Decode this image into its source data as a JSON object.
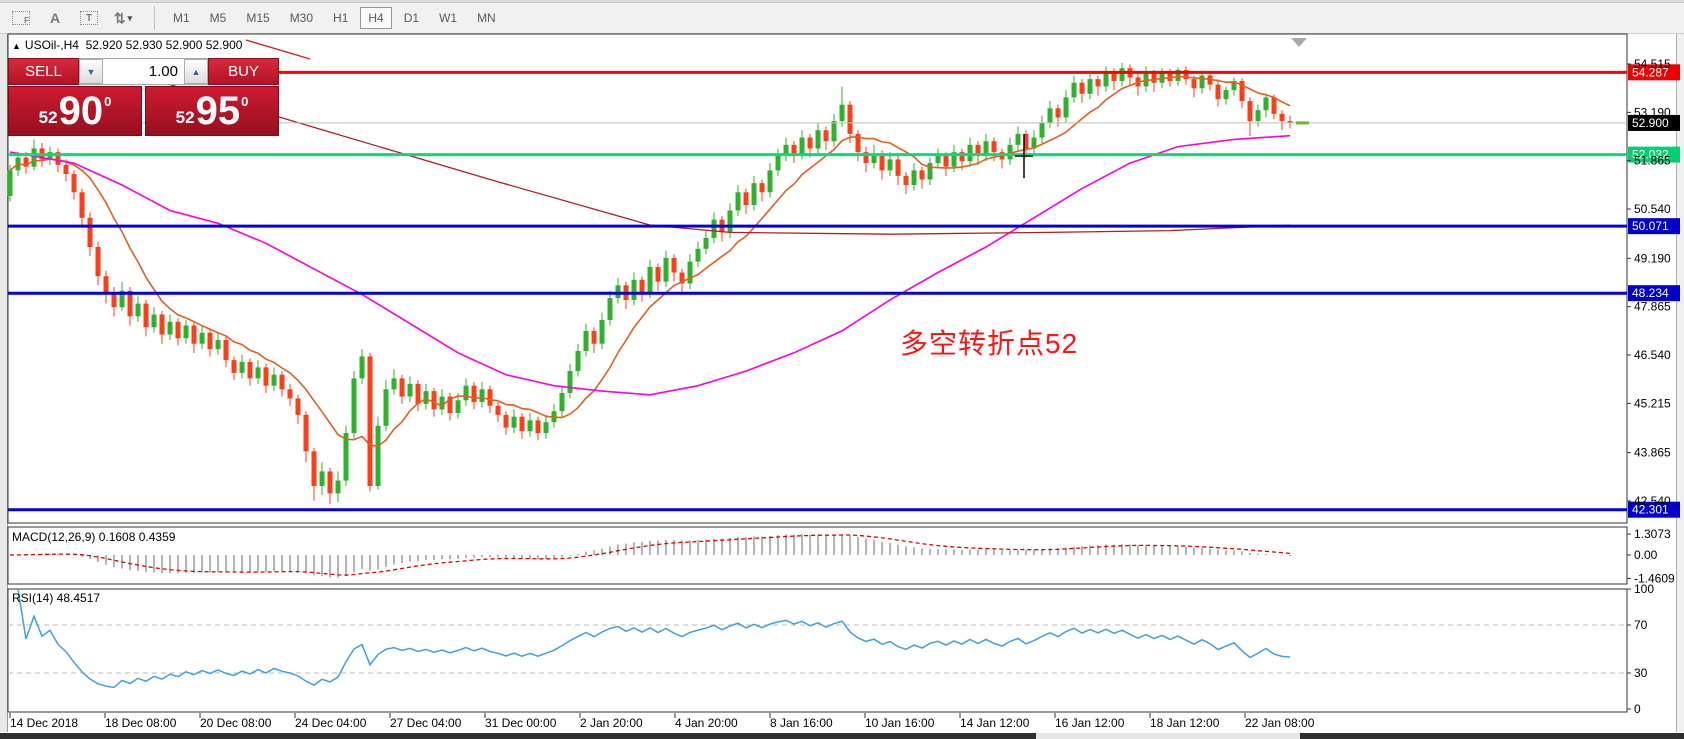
{
  "toolbar": {
    "tool_icons": [
      {
        "name": "template-f-icon",
        "glyph": "F"
      },
      {
        "name": "text-label-icon",
        "glyph": "A"
      },
      {
        "name": "text-tool-icon",
        "glyph": "T"
      },
      {
        "name": "arrows-tool-icon",
        "glyph": "⇅"
      }
    ],
    "dropdown_caret": "▾",
    "timeframes": [
      "M1",
      "M5",
      "M15",
      "M30",
      "H1",
      "H4",
      "D1",
      "W1",
      "MN"
    ],
    "active_timeframe": "H4"
  },
  "chart": {
    "title_symbol": "USOil-,H4",
    "title_quotes": "52.920 52.930 52.900 52.900",
    "title_arrow": "▲"
  },
  "trade_panel": {
    "sell_label": "SELL",
    "buy_label": "BUY",
    "volume": "1.00",
    "volume_up_glyph": "▲",
    "volume_down_glyph": "▼",
    "sell_price_small": "52",
    "sell_price_big": "90",
    "sell_price_sup": "0",
    "buy_price_small": "52",
    "buy_price_big": "95",
    "buy_price_sup": "0"
  },
  "chart_data": {
    "type": "candlestick",
    "symbol": "USOil-",
    "timeframe": "H4",
    "up_color": "#2bb32b",
    "down_color": "#ff3d17",
    "price_axis_ticks": [
      54.515,
      53.19,
      51.865,
      50.54,
      49.19,
      47.865,
      46.54,
      45.215,
      43.865,
      42.54
    ],
    "levels": [
      {
        "price": 54.287,
        "label": "54.287",
        "color": "#ff0000",
        "width": 3,
        "badge": "#ee0000"
      },
      {
        "price": 52.9,
        "label": "52.900",
        "color": "#bdbdbd",
        "width": 1,
        "badge": "#000000"
      },
      {
        "price": 52.032,
        "label": "52.032",
        "color": "#00df7a",
        "width": 3,
        "badge": "#00d274"
      },
      {
        "price": 50.071,
        "label": "50.071",
        "color": "#0000d9",
        "width": 3,
        "badge": "#0000cc"
      },
      {
        "price": 48.234,
        "label": "48.234",
        "color": "#0000d9",
        "width": 3,
        "badge": "#0000cc"
      },
      {
        "price": 42.301,
        "label": "42.301",
        "color": "#0000d9",
        "width": 3,
        "badge": "#0000cc"
      }
    ],
    "close_marker": {
      "price": 52.9,
      "color": "#6ab42f"
    },
    "candles": [
      [
        50.9,
        51.75,
        50.75,
        51.6
      ],
      [
        51.6,
        52.1,
        51.45,
        51.95
      ],
      [
        51.95,
        52.1,
        51.5,
        51.7
      ],
      [
        51.7,
        52.45,
        51.6,
        52.2
      ],
      [
        52.2,
        52.35,
        51.7,
        51.9
      ],
      [
        51.9,
        52.25,
        51.75,
        52.1
      ],
      [
        52.1,
        52.2,
        51.55,
        51.75
      ],
      [
        51.75,
        51.9,
        51.3,
        51.5
      ],
      [
        51.5,
        51.6,
        50.8,
        51.0
      ],
      [
        51.0,
        51.1,
        50.05,
        50.3
      ],
      [
        50.3,
        50.45,
        49.25,
        49.5
      ],
      [
        49.5,
        49.65,
        48.45,
        48.7
      ],
      [
        48.7,
        48.85,
        47.95,
        48.2
      ],
      [
        48.2,
        48.4,
        47.6,
        47.85
      ],
      [
        47.85,
        48.55,
        47.75,
        48.3
      ],
      [
        48.3,
        48.4,
        47.35,
        47.6
      ],
      [
        47.6,
        48.15,
        47.45,
        47.95
      ],
      [
        47.95,
        48.05,
        47.05,
        47.3
      ],
      [
        47.3,
        47.85,
        47.15,
        47.65
      ],
      [
        47.65,
        47.75,
        46.85,
        47.1
      ],
      [
        47.1,
        47.65,
        46.95,
        47.45
      ],
      [
        47.45,
        47.55,
        46.8,
        47.0
      ],
      [
        47.0,
        47.5,
        46.85,
        47.35
      ],
      [
        47.35,
        47.45,
        46.6,
        46.85
      ],
      [
        46.85,
        47.35,
        46.7,
        47.15
      ],
      [
        47.15,
        47.25,
        46.5,
        46.7
      ],
      [
        46.7,
        47.15,
        46.55,
        46.95
      ],
      [
        46.95,
        47.05,
        46.2,
        46.4
      ],
      [
        46.4,
        46.5,
        45.85,
        46.05
      ],
      [
        46.05,
        46.55,
        45.9,
        46.35
      ],
      [
        46.35,
        46.45,
        45.7,
        45.9
      ],
      [
        45.9,
        46.4,
        45.75,
        46.2
      ],
      [
        46.2,
        46.3,
        45.5,
        45.7
      ],
      [
        45.7,
        46.2,
        45.55,
        46.0
      ],
      [
        46.0,
        46.1,
        45.4,
        45.6
      ],
      [
        45.6,
        45.75,
        45.15,
        45.35
      ],
      [
        45.35,
        45.45,
        44.65,
        44.9
      ],
      [
        44.9,
        45.0,
        43.6,
        43.9
      ],
      [
        43.9,
        44.0,
        42.55,
        42.95
      ],
      [
        42.95,
        43.6,
        42.7,
        43.35
      ],
      [
        43.35,
        43.45,
        42.45,
        42.75
      ],
      [
        42.75,
        43.35,
        42.5,
        43.1
      ],
      [
        43.1,
        44.6,
        42.95,
        44.4
      ],
      [
        44.4,
        46.1,
        44.25,
        45.9
      ],
      [
        45.9,
        46.7,
        45.75,
        46.5
      ],
      [
        46.5,
        46.6,
        42.8,
        42.95
      ],
      [
        42.95,
        44.85,
        42.85,
        44.6
      ],
      [
        44.6,
        45.85,
        44.45,
        45.6
      ],
      [
        45.6,
        46.15,
        45.45,
        45.9
      ],
      [
        45.9,
        46.0,
        45.2,
        45.4
      ],
      [
        45.4,
        45.95,
        45.25,
        45.75
      ],
      [
        45.75,
        45.85,
        45.0,
        45.2
      ],
      [
        45.2,
        45.75,
        45.05,
        45.55
      ],
      [
        45.55,
        45.65,
        44.85,
        45.05
      ],
      [
        45.05,
        45.6,
        44.9,
        45.4
      ],
      [
        45.4,
        45.5,
        44.75,
        44.95
      ],
      [
        44.95,
        45.5,
        44.8,
        45.3
      ],
      [
        45.3,
        45.9,
        45.15,
        45.7
      ],
      [
        45.7,
        45.8,
        45.05,
        45.25
      ],
      [
        45.25,
        45.8,
        45.1,
        45.6
      ],
      [
        45.6,
        45.7,
        44.95,
        45.15
      ],
      [
        45.15,
        45.25,
        44.7,
        44.9
      ],
      [
        44.9,
        45.0,
        44.35,
        44.55
      ],
      [
        44.55,
        45.05,
        44.4,
        44.85
      ],
      [
        44.85,
        44.95,
        44.25,
        44.45
      ],
      [
        44.45,
        44.95,
        44.3,
        44.75
      ],
      [
        44.75,
        44.85,
        44.2,
        44.4
      ],
      [
        44.4,
        44.9,
        44.25,
        44.7
      ],
      [
        44.7,
        45.2,
        44.55,
        45.0
      ],
      [
        45.0,
        45.7,
        44.85,
        45.5
      ],
      [
        45.5,
        46.3,
        45.35,
        46.1
      ],
      [
        46.1,
        46.85,
        45.95,
        46.65
      ],
      [
        46.65,
        47.4,
        46.5,
        47.2
      ],
      [
        47.2,
        47.3,
        46.6,
        46.85
      ],
      [
        46.85,
        47.7,
        46.7,
        47.5
      ],
      [
        47.5,
        48.3,
        47.35,
        48.1
      ],
      [
        48.1,
        48.65,
        47.95,
        48.45
      ],
      [
        48.45,
        48.55,
        47.8,
        48.05
      ],
      [
        48.05,
        48.8,
        47.9,
        48.6
      ],
      [
        48.6,
        48.7,
        48.0,
        48.25
      ],
      [
        48.25,
        49.15,
        48.1,
        48.95
      ],
      [
        48.95,
        49.05,
        48.3,
        48.55
      ],
      [
        48.55,
        49.4,
        48.4,
        49.2
      ],
      [
        49.2,
        49.3,
        48.55,
        48.8
      ],
      [
        48.8,
        48.9,
        48.25,
        48.5
      ],
      [
        48.5,
        49.3,
        48.35,
        49.1
      ],
      [
        49.1,
        49.65,
        48.95,
        49.45
      ],
      [
        49.45,
        49.95,
        49.3,
        49.75
      ],
      [
        49.75,
        50.45,
        49.6,
        50.25
      ],
      [
        50.25,
        50.35,
        49.65,
        49.9
      ],
      [
        49.9,
        50.7,
        49.75,
        50.5
      ],
      [
        50.5,
        51.2,
        50.35,
        51.0
      ],
      [
        51.0,
        51.1,
        50.4,
        50.65
      ],
      [
        50.65,
        51.45,
        50.5,
        51.25
      ],
      [
        51.25,
        51.35,
        50.75,
        51.0
      ],
      [
        51.0,
        51.8,
        50.85,
        51.6
      ],
      [
        51.6,
        52.2,
        51.45,
        52.0
      ],
      [
        52.0,
        52.5,
        51.85,
        52.3
      ],
      [
        52.3,
        52.4,
        51.8,
        52.05
      ],
      [
        52.05,
        52.7,
        51.9,
        52.5
      ],
      [
        52.5,
        52.6,
        51.95,
        52.2
      ],
      [
        52.2,
        52.9,
        52.05,
        52.7
      ],
      [
        52.7,
        52.8,
        52.15,
        52.4
      ],
      [
        52.4,
        53.15,
        52.25,
        52.95
      ],
      [
        52.95,
        53.9,
        52.8,
        53.4
      ],
      [
        53.4,
        53.5,
        52.35,
        52.6
      ],
      [
        52.6,
        52.7,
        51.85,
        52.1
      ],
      [
        52.1,
        52.25,
        51.55,
        51.8
      ],
      [
        51.8,
        52.3,
        51.65,
        52.05
      ],
      [
        52.05,
        52.15,
        51.35,
        51.6
      ],
      [
        51.6,
        52.1,
        51.45,
        51.9
      ],
      [
        51.9,
        52.0,
        51.2,
        51.45
      ],
      [
        51.45,
        51.55,
        50.95,
        51.2
      ],
      [
        51.2,
        51.8,
        51.05,
        51.6
      ],
      [
        51.6,
        51.7,
        51.1,
        51.35
      ],
      [
        51.35,
        51.95,
        51.2,
        51.8
      ],
      [
        51.8,
        52.2,
        51.65,
        52.0
      ],
      [
        52.0,
        52.1,
        51.45,
        51.7
      ],
      [
        51.7,
        52.3,
        51.55,
        52.1
      ],
      [
        52.1,
        52.2,
        51.6,
        51.85
      ],
      [
        51.85,
        52.5,
        51.7,
        52.3
      ],
      [
        52.3,
        52.4,
        51.75,
        52.0
      ],
      [
        52.0,
        52.6,
        51.85,
        52.4
      ],
      [
        52.4,
        52.5,
        51.85,
        52.1
      ],
      [
        52.1,
        52.2,
        51.65,
        51.9
      ],
      [
        51.9,
        52.5,
        51.75,
        52.3
      ],
      [
        52.3,
        52.8,
        52.15,
        52.6
      ],
      [
        52.6,
        52.7,
        51.95,
        52.2
      ],
      [
        52.2,
        52.7,
        52.05,
        52.5
      ],
      [
        52.5,
        53.1,
        52.35,
        52.9
      ],
      [
        52.9,
        53.5,
        52.75,
        53.3
      ],
      [
        53.3,
        53.4,
        52.8,
        53.05
      ],
      [
        53.05,
        53.8,
        52.9,
        53.6
      ],
      [
        53.6,
        54.2,
        53.45,
        54.0
      ],
      [
        54.0,
        54.1,
        53.45,
        53.7
      ],
      [
        53.7,
        54.3,
        53.55,
        54.1
      ],
      [
        54.1,
        54.2,
        53.65,
        53.9
      ],
      [
        53.9,
        54.45,
        53.75,
        54.3
      ],
      [
        54.3,
        54.4,
        53.8,
        54.05
      ],
      [
        54.05,
        54.55,
        53.9,
        54.4
      ],
      [
        54.4,
        54.5,
        53.95,
        54.15
      ],
      [
        54.15,
        54.25,
        53.65,
        53.9
      ],
      [
        53.9,
        54.45,
        53.75,
        54.25
      ],
      [
        54.25,
        54.35,
        53.75,
        54.0
      ],
      [
        54.0,
        54.4,
        53.85,
        54.3
      ],
      [
        54.3,
        54.38,
        53.9,
        54.05
      ],
      [
        54.05,
        54.42,
        53.92,
        54.35
      ],
      [
        54.35,
        54.45,
        53.95,
        54.1
      ],
      [
        54.1,
        54.2,
        53.6,
        53.85
      ],
      [
        53.85,
        54.3,
        53.7,
        54.2
      ],
      [
        54.2,
        54.32,
        53.8,
        53.95
      ],
      [
        53.95,
        54.1,
        53.35,
        53.55
      ],
      [
        53.55,
        53.9,
        53.4,
        53.8
      ],
      [
        53.8,
        54.15,
        53.65,
        54.05
      ],
      [
        54.05,
        54.12,
        53.3,
        53.5
      ],
      [
        53.5,
        53.6,
        52.55,
        52.95
      ],
      [
        52.95,
        53.4,
        52.8,
        53.25
      ],
      [
        53.25,
        53.7,
        53.05,
        53.6
      ],
      [
        53.6,
        53.68,
        53.0,
        53.15
      ],
      [
        53.15,
        53.25,
        52.7,
        52.95
      ],
      [
        52.95,
        53.1,
        52.75,
        52.9
      ]
    ],
    "ma_fast": {
      "period": 10,
      "color": "#e06020"
    },
    "ma_mid": {
      "color": "#ff00dc",
      "points": [
        [
          0,
          52.1
        ],
        [
          8,
          51.8
        ],
        [
          14,
          51.2
        ],
        [
          20,
          50.5
        ],
        [
          26,
          50.15
        ],
        [
          32,
          49.6
        ],
        [
          38,
          48.9
        ],
        [
          44,
          48.2
        ],
        [
          50,
          47.4
        ],
        [
          56,
          46.6
        ],
        [
          62,
          46.0
        ],
        [
          68,
          45.7
        ],
        [
          74,
          45.55
        ],
        [
          80,
          45.45
        ],
        [
          86,
          45.7
        ],
        [
          92,
          46.1
        ],
        [
          98,
          46.6
        ],
        [
          104,
          47.2
        ],
        [
          110,
          48.05
        ],
        [
          116,
          48.8
        ],
        [
          122,
          49.5
        ],
        [
          128,
          50.3
        ],
        [
          134,
          51.1
        ],
        [
          140,
          51.8
        ],
        [
          146,
          52.25
        ],
        [
          153,
          52.45
        ],
        [
          160,
          52.55
        ]
      ]
    },
    "ma_slow": {
      "color": "#b01e28",
      "points": [
        [
          0,
          55.3
        ],
        [
          20,
          53.95
        ],
        [
          40,
          52.65
        ],
        [
          60,
          51.35
        ],
        [
          80,
          50.1
        ],
        [
          90,
          49.9
        ],
        [
          110,
          49.85
        ],
        [
          130,
          49.9
        ],
        [
          145,
          49.95
        ],
        [
          160,
          50.1
        ]
      ]
    },
    "trendline_color": "#cc2222",
    "macd": {
      "label": "MACD(12,26,9) 0.1608 0.4359",
      "axis_labels": [
        "1.3073",
        "0.00",
        "-1.4609"
      ],
      "axis_values": [
        1.3073,
        0.0,
        -1.4609
      ],
      "fast": 12,
      "slow": 26,
      "signal": 9,
      "hist_color": "#b4b4b4",
      "signal_color": "#e00000"
    },
    "rsi": {
      "label": "RSI(14) 48.4517",
      "period": 14,
      "axis_labels": [
        "100",
        "70",
        "30",
        "0"
      ],
      "axis_values": [
        100,
        70,
        30,
        0
      ],
      "level_high": 70,
      "level_low": 30,
      "line_color": "#3f9fdf",
      "level_color": "#bbbbbb"
    },
    "time_labels": [
      "14 Dec 2018",
      "18 Dec 08:00",
      "20 Dec 08:00",
      "24 Dec 04:00",
      "27 Dec 04:00",
      "31 Dec 00:00",
      "2 Jan 20:00",
      "4 Jan 20:00",
      "8 Jan 16:00",
      "10 Jan 16:00",
      "14 Jan 12:00",
      "16 Jan 12:00",
      "18 Jan 12:00",
      "22 Jan 08:00"
    ],
    "annotation": {
      "text": "多空转折点52",
      "color": "#ff1414"
    }
  }
}
